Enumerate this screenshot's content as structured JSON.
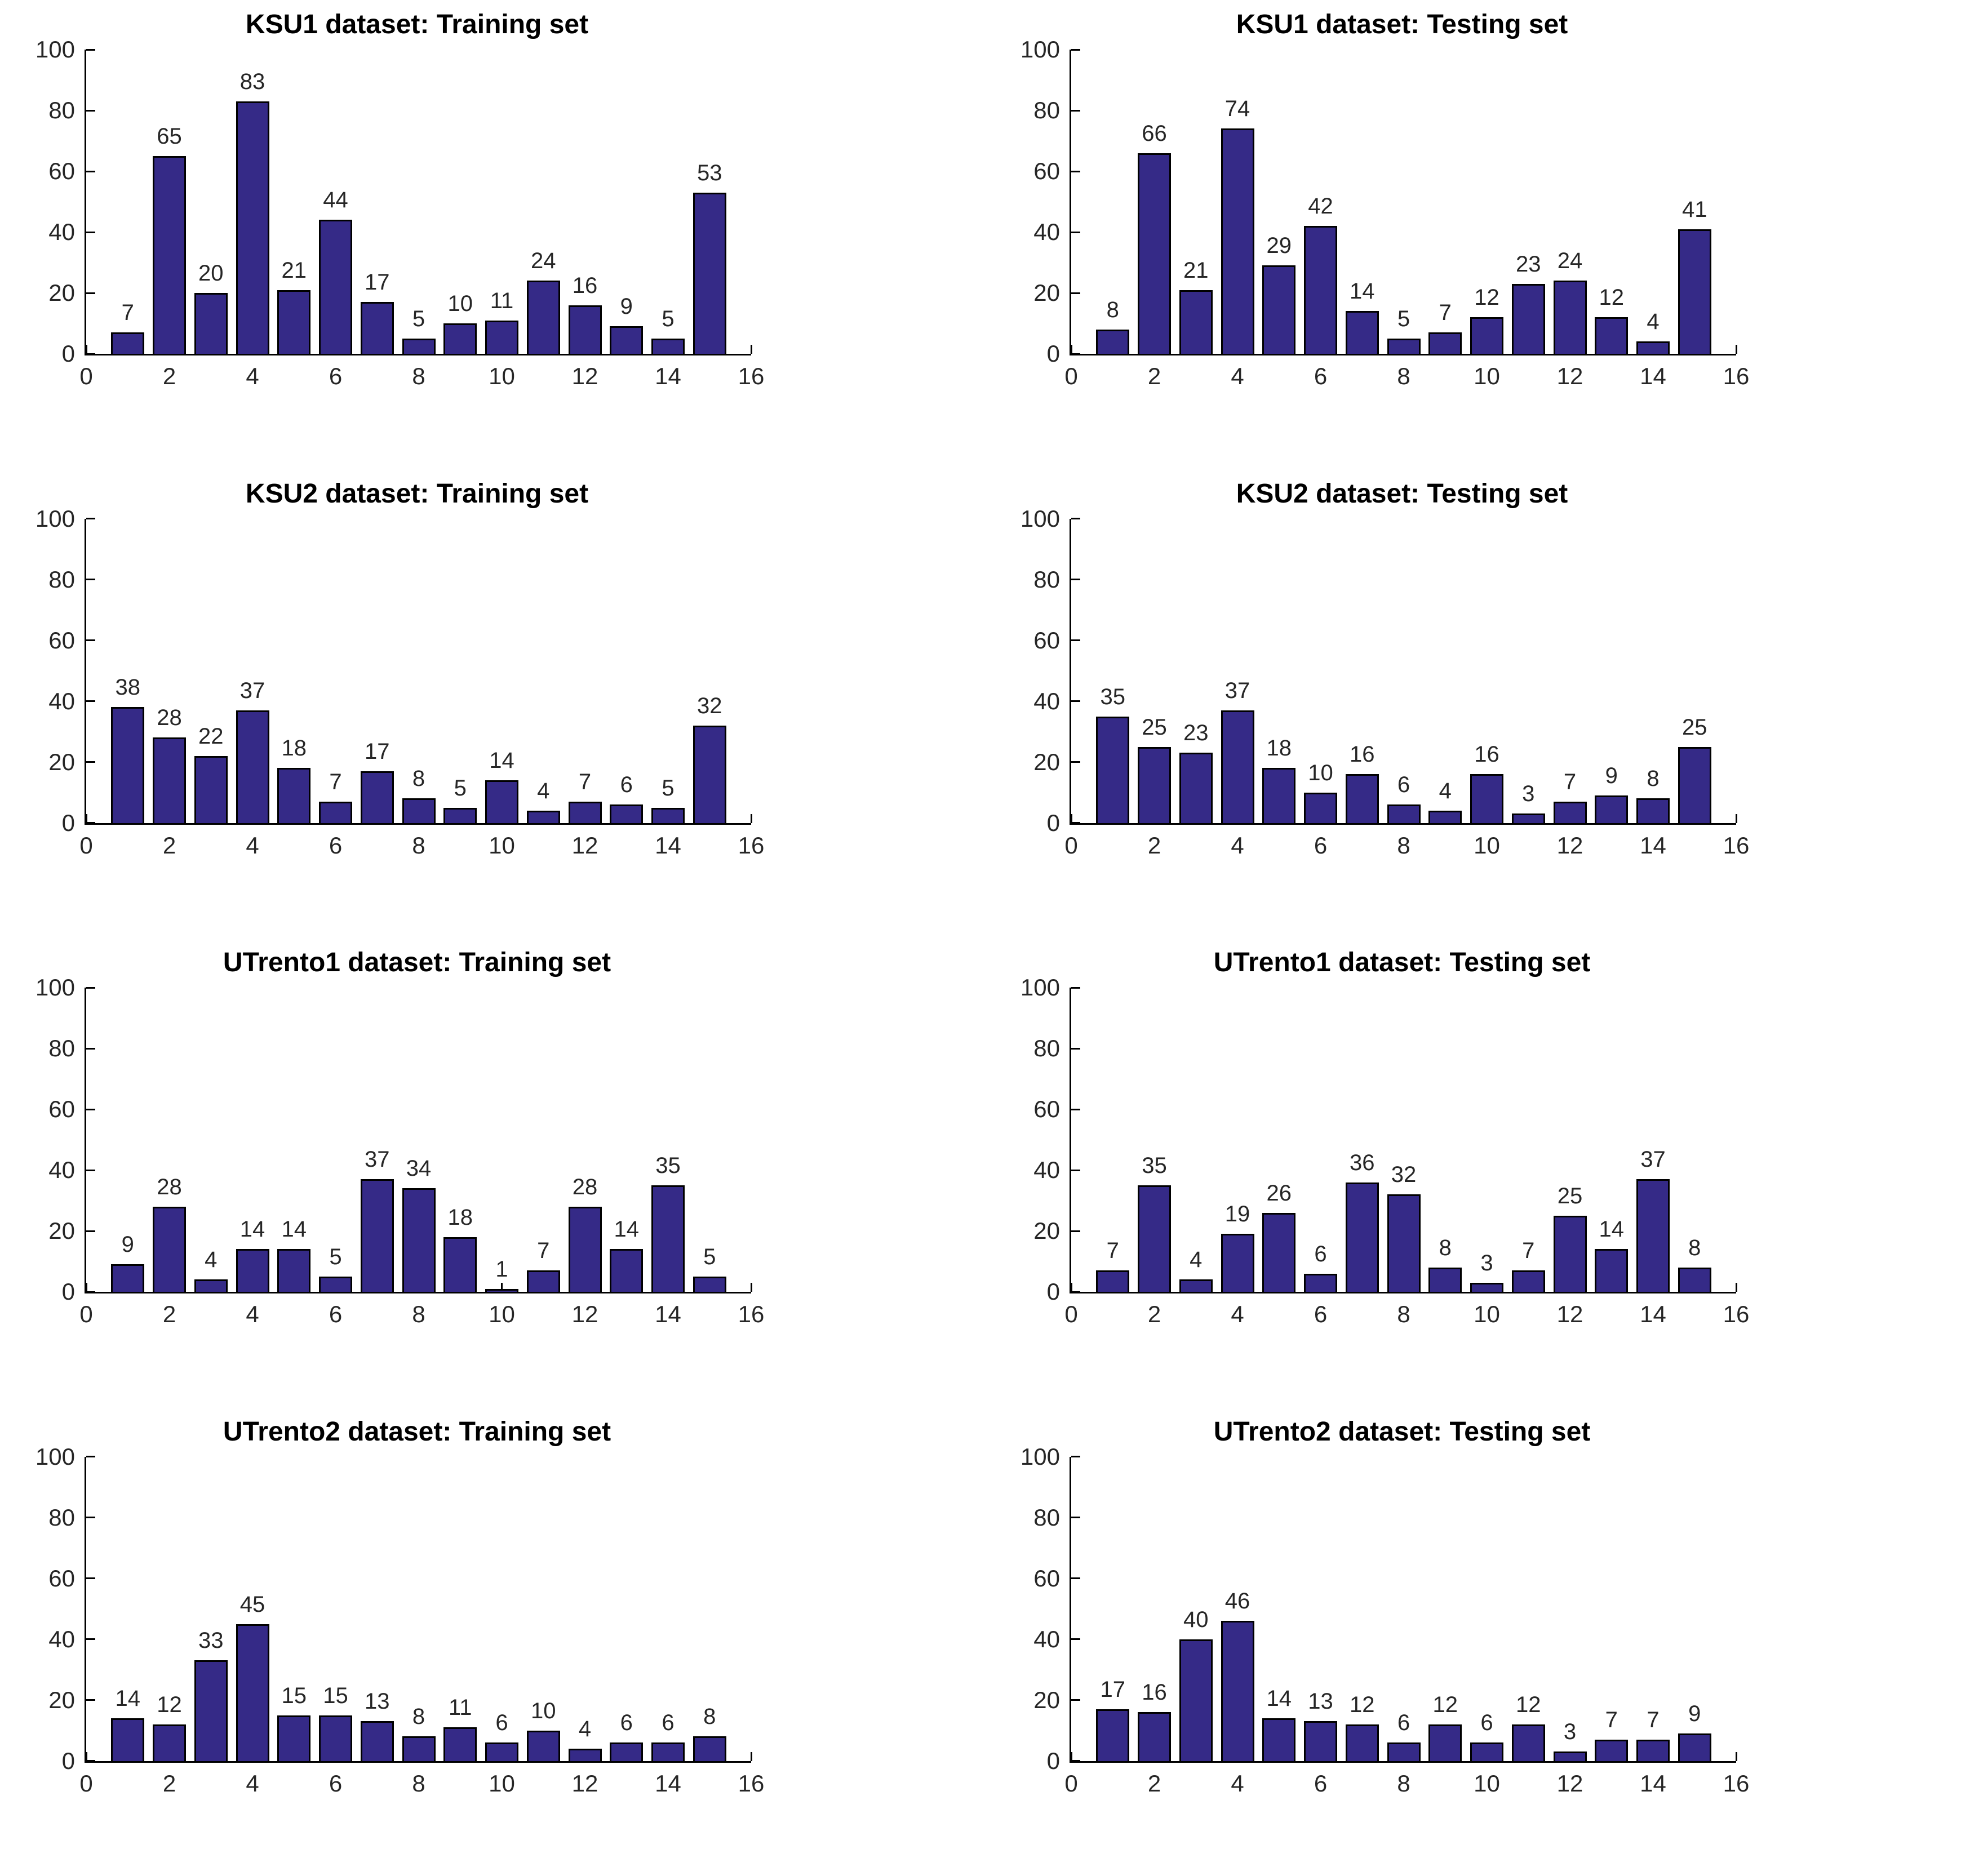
{
  "colors": {
    "bar_fill": "#352A87",
    "bar_edge": "#000000",
    "axis": "#000000",
    "tick_label": "#262626",
    "value_label": "#262626"
  },
  "chart_data": [
    {
      "type": "bar",
      "title": "KSU1 dataset: Training set",
      "x": [
        1,
        2,
        3,
        4,
        5,
        6,
        7,
        8,
        9,
        10,
        11,
        12,
        13,
        14,
        15
      ],
      "values": [
        7,
        65,
        20,
        83,
        21,
        44,
        17,
        5,
        10,
        11,
        24,
        16,
        9,
        5,
        53
      ],
      "xlabel": "",
      "ylabel": "",
      "xlim": [
        0,
        16
      ],
      "ylim": [
        0,
        100
      ],
      "xticks": [
        0,
        2,
        4,
        6,
        8,
        10,
        12,
        14,
        16
      ],
      "yticks": [
        0,
        20,
        40,
        60,
        80,
        100
      ],
      "grid": false,
      "bar_width": 0.8
    },
    {
      "type": "bar",
      "title": "KSU1 dataset: Testing set",
      "x": [
        1,
        2,
        3,
        4,
        5,
        6,
        7,
        8,
        9,
        10,
        11,
        12,
        13,
        14,
        15
      ],
      "values": [
        8,
        66,
        21,
        74,
        29,
        42,
        14,
        5,
        7,
        12,
        23,
        24,
        12,
        4,
        41
      ],
      "xlabel": "",
      "ylabel": "",
      "xlim": [
        0,
        16
      ],
      "ylim": [
        0,
        100
      ],
      "xticks": [
        0,
        2,
        4,
        6,
        8,
        10,
        12,
        14,
        16
      ],
      "yticks": [
        0,
        20,
        40,
        60,
        80,
        100
      ],
      "grid": false,
      "bar_width": 0.8
    },
    {
      "type": "bar",
      "title": "KSU2 dataset: Training set",
      "x": [
        1,
        2,
        3,
        4,
        5,
        6,
        7,
        8,
        9,
        10,
        11,
        12,
        13,
        14,
        15
      ],
      "values": [
        38,
        28,
        22,
        37,
        18,
        7,
        17,
        8,
        5,
        14,
        4,
        7,
        6,
        5,
        32
      ],
      "xlabel": "",
      "ylabel": "",
      "xlim": [
        0,
        16
      ],
      "ylim": [
        0,
        100
      ],
      "xticks": [
        0,
        2,
        4,
        6,
        8,
        10,
        12,
        14,
        16
      ],
      "yticks": [
        0,
        20,
        40,
        60,
        80,
        100
      ],
      "grid": false,
      "bar_width": 0.8
    },
    {
      "type": "bar",
      "title": "KSU2 dataset: Testing set",
      "x": [
        1,
        2,
        3,
        4,
        5,
        6,
        7,
        8,
        9,
        10,
        11,
        12,
        13,
        14,
        15
      ],
      "values": [
        35,
        25,
        23,
        37,
        18,
        10,
        16,
        6,
        4,
        16,
        3,
        7,
        9,
        8,
        25
      ],
      "xlabel": "",
      "ylabel": "",
      "xlim": [
        0,
        16
      ],
      "ylim": [
        0,
        100
      ],
      "xticks": [
        0,
        2,
        4,
        6,
        8,
        10,
        12,
        14,
        16
      ],
      "yticks": [
        0,
        20,
        40,
        60,
        80,
        100
      ],
      "grid": false,
      "bar_width": 0.8
    },
    {
      "type": "bar",
      "title": "UTrento1 dataset: Training set",
      "x": [
        1,
        2,
        3,
        4,
        5,
        6,
        7,
        8,
        9,
        10,
        11,
        12,
        13,
        14,
        15
      ],
      "values": [
        9,
        28,
        4,
        14,
        14,
        5,
        37,
        34,
        18,
        1,
        7,
        28,
        14,
        35,
        5
      ],
      "xlabel": "",
      "ylabel": "",
      "xlim": [
        0,
        16
      ],
      "ylim": [
        0,
        100
      ],
      "xticks": [
        0,
        2,
        4,
        6,
        8,
        10,
        12,
        14,
        16
      ],
      "yticks": [
        0,
        20,
        40,
        60,
        80,
        100
      ],
      "grid": false,
      "bar_width": 0.8
    },
    {
      "type": "bar",
      "title": "UTrento1 dataset: Testing set",
      "x": [
        1,
        2,
        3,
        4,
        5,
        6,
        7,
        8,
        9,
        10,
        11,
        12,
        13,
        14,
        15
      ],
      "values": [
        7,
        35,
        4,
        19,
        26,
        6,
        36,
        32,
        8,
        3,
        7,
        25,
        14,
        37,
        8
      ],
      "xlabel": "",
      "ylabel": "",
      "xlim": [
        0,
        16
      ],
      "ylim": [
        0,
        100
      ],
      "xticks": [
        0,
        2,
        4,
        6,
        8,
        10,
        12,
        14,
        16
      ],
      "yticks": [
        0,
        20,
        40,
        60,
        80,
        100
      ],
      "grid": false,
      "bar_width": 0.8
    },
    {
      "type": "bar",
      "title": "UTrento2 dataset: Training set",
      "x": [
        1,
        2,
        3,
        4,
        5,
        6,
        7,
        8,
        9,
        10,
        11,
        12,
        13,
        14,
        15
      ],
      "values": [
        14,
        12,
        33,
        45,
        15,
        15,
        13,
        8,
        11,
        6,
        10,
        4,
        6,
        6,
        8
      ],
      "xlabel": "",
      "ylabel": "",
      "xlim": [
        0,
        16
      ],
      "ylim": [
        0,
        100
      ],
      "xticks": [
        0,
        2,
        4,
        6,
        8,
        10,
        12,
        14,
        16
      ],
      "yticks": [
        0,
        20,
        40,
        60,
        80,
        100
      ],
      "grid": false,
      "bar_width": 0.8
    },
    {
      "type": "bar",
      "title": "UTrento2 dataset: Testing set",
      "x": [
        1,
        2,
        3,
        4,
        5,
        6,
        7,
        8,
        9,
        10,
        11,
        12,
        13,
        14,
        15
      ],
      "values": [
        17,
        16,
        40,
        46,
        14,
        13,
        12,
        6,
        12,
        6,
        12,
        3,
        7,
        7,
        9
      ],
      "xlabel": "",
      "ylabel": "",
      "xlim": [
        0,
        16
      ],
      "ylim": [
        0,
        100
      ],
      "xticks": [
        0,
        2,
        4,
        6,
        8,
        10,
        12,
        14,
        16
      ],
      "yticks": [
        0,
        20,
        40,
        60,
        80,
        100
      ],
      "grid": false,
      "bar_width": 0.8
    }
  ]
}
